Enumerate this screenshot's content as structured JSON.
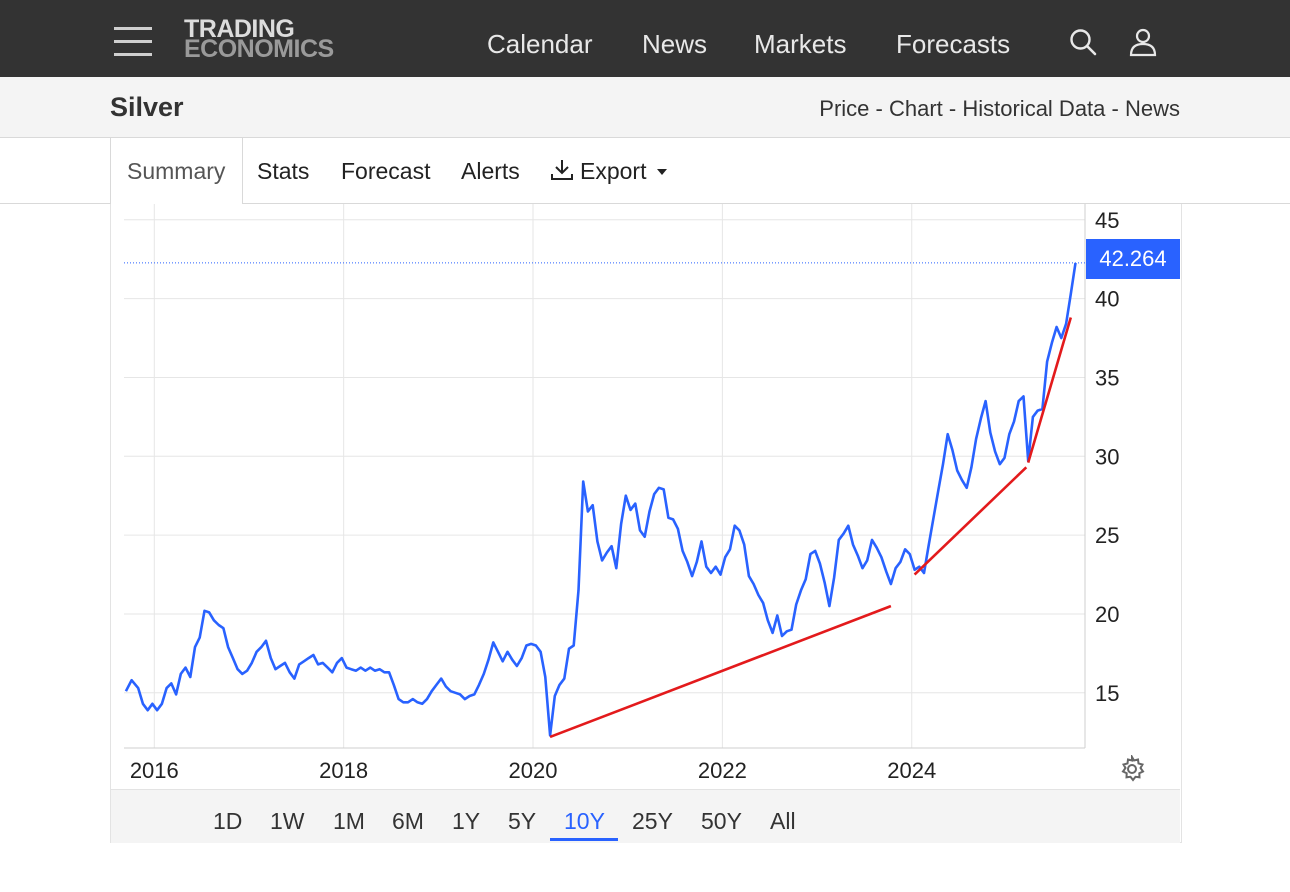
{
  "header": {
    "logo_line1": "TRADING",
    "logo_line2": "ECONOMICS",
    "nav": [
      "Calendar",
      "News",
      "Markets",
      "Forecasts"
    ]
  },
  "page": {
    "title": "Silver",
    "breadcrumbs": [
      "Price",
      "Chart",
      "Historical Data",
      "News"
    ],
    "breadcrumb_separator": "-"
  },
  "tabs": {
    "summary": "Summary",
    "stats": "Stats",
    "forecast": "Forecast",
    "alerts": "Alerts",
    "export": "Export"
  },
  "ranges": [
    "1D",
    "1W",
    "1M",
    "6M",
    "1Y",
    "5Y",
    "10Y",
    "25Y",
    "50Y",
    "All"
  ],
  "active_range": "10Y",
  "colors": {
    "accent": "#2962ff",
    "trendline": "#e31a1c",
    "topbar": "#333333"
  },
  "icons": {
    "menu": "hamburger-icon",
    "search": "search-icon",
    "user": "user-icon",
    "export": "download-icon",
    "settings": "gear-icon"
  },
  "chart_data": {
    "type": "line",
    "title": "",
    "xlabel": "",
    "ylabel": "",
    "x_ticks": [
      "2016",
      "2018",
      "2020",
      "2022",
      "2024"
    ],
    "y_ticks": [
      15,
      20,
      25,
      30,
      35,
      40,
      45
    ],
    "ylim": [
      11.5,
      46
    ],
    "xlim": [
      2015.7,
      2025.85
    ],
    "y_axis_side": "right",
    "grid": true,
    "last_value": "42.264",
    "series": [
      {
        "points": [
          [
            2015.72,
            15.1
          ],
          [
            2015.78,
            15.8
          ],
          [
            2015.85,
            15.3
          ],
          [
            2015.9,
            14.3
          ],
          [
            2015.95,
            13.9
          ],
          [
            2016.0,
            14.3
          ],
          [
            2016.05,
            13.9
          ],
          [
            2016.1,
            14.3
          ],
          [
            2016.15,
            15.3
          ],
          [
            2016.2,
            15.6
          ],
          [
            2016.25,
            14.9
          ],
          [
            2016.3,
            16.2
          ],
          [
            2016.35,
            16.6
          ],
          [
            2016.4,
            16.0
          ],
          [
            2016.45,
            17.9
          ],
          [
            2016.5,
            18.5
          ],
          [
            2016.55,
            20.2
          ],
          [
            2016.6,
            20.1
          ],
          [
            2016.65,
            19.6
          ],
          [
            2016.7,
            19.3
          ],
          [
            2016.75,
            19.1
          ],
          [
            2016.8,
            17.9
          ],
          [
            2016.85,
            17.2
          ],
          [
            2016.9,
            16.5
          ],
          [
            2016.95,
            16.2
          ],
          [
            2017.0,
            16.4
          ],
          [
            2017.05,
            16.9
          ],
          [
            2017.1,
            17.6
          ],
          [
            2017.15,
            17.9
          ],
          [
            2017.2,
            18.3
          ],
          [
            2017.25,
            17.2
          ],
          [
            2017.3,
            16.5
          ],
          [
            2017.35,
            16.7
          ],
          [
            2017.4,
            16.9
          ],
          [
            2017.45,
            16.3
          ],
          [
            2017.5,
            15.9
          ],
          [
            2017.55,
            16.8
          ],
          [
            2017.6,
            17.0
          ],
          [
            2017.65,
            17.2
          ],
          [
            2017.7,
            17.4
          ],
          [
            2017.75,
            16.8
          ],
          [
            2017.8,
            16.9
          ],
          [
            2017.85,
            16.6
          ],
          [
            2017.9,
            16.3
          ],
          [
            2017.95,
            16.9
          ],
          [
            2018.0,
            17.2
          ],
          [
            2018.05,
            16.6
          ],
          [
            2018.1,
            16.5
          ],
          [
            2018.15,
            16.4
          ],
          [
            2018.2,
            16.6
          ],
          [
            2018.25,
            16.4
          ],
          [
            2018.3,
            16.6
          ],
          [
            2018.35,
            16.4
          ],
          [
            2018.4,
            16.5
          ],
          [
            2018.45,
            16.3
          ],
          [
            2018.5,
            16.3
          ],
          [
            2018.55,
            15.5
          ],
          [
            2018.6,
            14.6
          ],
          [
            2018.65,
            14.4
          ],
          [
            2018.7,
            14.4
          ],
          [
            2018.75,
            14.6
          ],
          [
            2018.8,
            14.4
          ],
          [
            2018.85,
            14.3
          ],
          [
            2018.9,
            14.6
          ],
          [
            2018.95,
            15.1
          ],
          [
            2019.0,
            15.5
          ],
          [
            2019.05,
            15.9
          ],
          [
            2019.1,
            15.4
          ],
          [
            2019.15,
            15.1
          ],
          [
            2019.2,
            15.0
          ],
          [
            2019.25,
            14.9
          ],
          [
            2019.3,
            14.6
          ],
          [
            2019.35,
            14.8
          ],
          [
            2019.4,
            14.9
          ],
          [
            2019.45,
            15.5
          ],
          [
            2019.5,
            16.2
          ],
          [
            2019.55,
            17.1
          ],
          [
            2019.6,
            18.2
          ],
          [
            2019.65,
            17.6
          ],
          [
            2019.7,
            17.0
          ],
          [
            2019.75,
            17.6
          ],
          [
            2019.8,
            17.1
          ],
          [
            2019.85,
            16.7
          ],
          [
            2019.9,
            17.2
          ],
          [
            2019.95,
            18.0
          ],
          [
            2020.0,
            18.1
          ],
          [
            2020.05,
            18.0
          ],
          [
            2020.1,
            17.6
          ],
          [
            2020.15,
            16.0
          ],
          [
            2020.2,
            12.3
          ],
          [
            2020.25,
            14.8
          ],
          [
            2020.3,
            15.5
          ],
          [
            2020.35,
            15.9
          ],
          [
            2020.4,
            17.8
          ],
          [
            2020.45,
            18.0
          ],
          [
            2020.5,
            21.5
          ],
          [
            2020.55,
            28.4
          ],
          [
            2020.6,
            26.5
          ],
          [
            2020.65,
            26.9
          ],
          [
            2020.7,
            24.6
          ],
          [
            2020.75,
            23.4
          ],
          [
            2020.8,
            23.9
          ],
          [
            2020.85,
            24.3
          ],
          [
            2020.9,
            22.9
          ],
          [
            2020.95,
            25.7
          ],
          [
            2021.0,
            27.5
          ],
          [
            2021.05,
            26.6
          ],
          [
            2021.1,
            27.0
          ],
          [
            2021.15,
            25.3
          ],
          [
            2021.2,
            24.9
          ],
          [
            2021.25,
            26.5
          ],
          [
            2021.3,
            27.6
          ],
          [
            2021.35,
            28.0
          ],
          [
            2021.4,
            27.9
          ],
          [
            2021.45,
            26.1
          ],
          [
            2021.5,
            26.0
          ],
          [
            2021.55,
            25.4
          ],
          [
            2021.6,
            24.0
          ],
          [
            2021.65,
            23.3
          ],
          [
            2021.7,
            22.4
          ],
          [
            2021.75,
            23.3
          ],
          [
            2021.8,
            24.6
          ],
          [
            2021.85,
            23.0
          ],
          [
            2021.9,
            22.6
          ],
          [
            2021.95,
            23.0
          ],
          [
            2022.0,
            22.5
          ],
          [
            2022.05,
            23.6
          ],
          [
            2022.1,
            24.1
          ],
          [
            2022.15,
            25.6
          ],
          [
            2022.2,
            25.3
          ],
          [
            2022.25,
            24.4
          ],
          [
            2022.3,
            22.4
          ],
          [
            2022.35,
            21.9
          ],
          [
            2022.4,
            21.2
          ],
          [
            2022.45,
            20.7
          ],
          [
            2022.5,
            19.6
          ],
          [
            2022.55,
            18.8
          ],
          [
            2022.6,
            19.9
          ],
          [
            2022.65,
            18.6
          ],
          [
            2022.7,
            18.9
          ],
          [
            2022.75,
            19.0
          ],
          [
            2022.8,
            20.6
          ],
          [
            2022.85,
            21.5
          ],
          [
            2022.9,
            22.2
          ],
          [
            2022.95,
            23.8
          ],
          [
            2023.0,
            24.0
          ],
          [
            2023.05,
            23.2
          ],
          [
            2023.1,
            22.0
          ],
          [
            2023.15,
            20.5
          ],
          [
            2023.2,
            22.3
          ],
          [
            2023.25,
            24.7
          ],
          [
            2023.3,
            25.1
          ],
          [
            2023.35,
            25.6
          ],
          [
            2023.4,
            24.4
          ],
          [
            2023.45,
            23.7
          ],
          [
            2023.5,
            22.9
          ],
          [
            2023.55,
            23.4
          ],
          [
            2023.6,
            24.7
          ],
          [
            2023.65,
            24.2
          ],
          [
            2023.7,
            23.6
          ],
          [
            2023.75,
            22.7
          ],
          [
            2023.8,
            21.9
          ],
          [
            2023.85,
            22.9
          ],
          [
            2023.9,
            23.3
          ],
          [
            2023.95,
            24.1
          ],
          [
            2024.0,
            23.8
          ],
          [
            2024.05,
            22.8
          ],
          [
            2024.1,
            23.0
          ],
          [
            2024.15,
            22.6
          ],
          [
            2024.2,
            24.4
          ],
          [
            2024.25,
            26.1
          ],
          [
            2024.3,
            27.8
          ],
          [
            2024.35,
            29.5
          ],
          [
            2024.4,
            31.4
          ],
          [
            2024.45,
            30.4
          ],
          [
            2024.5,
            29.1
          ],
          [
            2024.55,
            28.5
          ],
          [
            2024.6,
            28.0
          ],
          [
            2024.65,
            29.3
          ],
          [
            2024.7,
            31.1
          ],
          [
            2024.75,
            32.4
          ],
          [
            2024.8,
            33.5
          ],
          [
            2024.85,
            31.5
          ],
          [
            2024.9,
            30.3
          ],
          [
            2024.95,
            29.5
          ],
          [
            2025.0,
            29.9
          ],
          [
            2025.05,
            31.4
          ],
          [
            2025.1,
            32.2
          ],
          [
            2025.15,
            33.5
          ],
          [
            2025.2,
            33.8
          ],
          [
            2025.25,
            29.7
          ],
          [
            2025.3,
            32.5
          ],
          [
            2025.35,
            32.9
          ],
          [
            2025.4,
            33.0
          ],
          [
            2025.45,
            36.0
          ],
          [
            2025.5,
            37.2
          ],
          [
            2025.55,
            38.2
          ],
          [
            2025.6,
            37.5
          ],
          [
            2025.65,
            38.4
          ],
          [
            2025.7,
            40.3
          ],
          [
            2025.75,
            42.264
          ]
        ]
      }
    ],
    "trendlines": [
      [
        [
          2020.2,
          12.2
        ],
        [
          2023.8,
          20.5
        ]
      ],
      [
        [
          2024.05,
          22.5
        ],
        [
          2025.23,
          29.3
        ]
      ],
      [
        [
          2025.25,
          29.6
        ],
        [
          2025.7,
          38.8
        ]
      ]
    ]
  }
}
